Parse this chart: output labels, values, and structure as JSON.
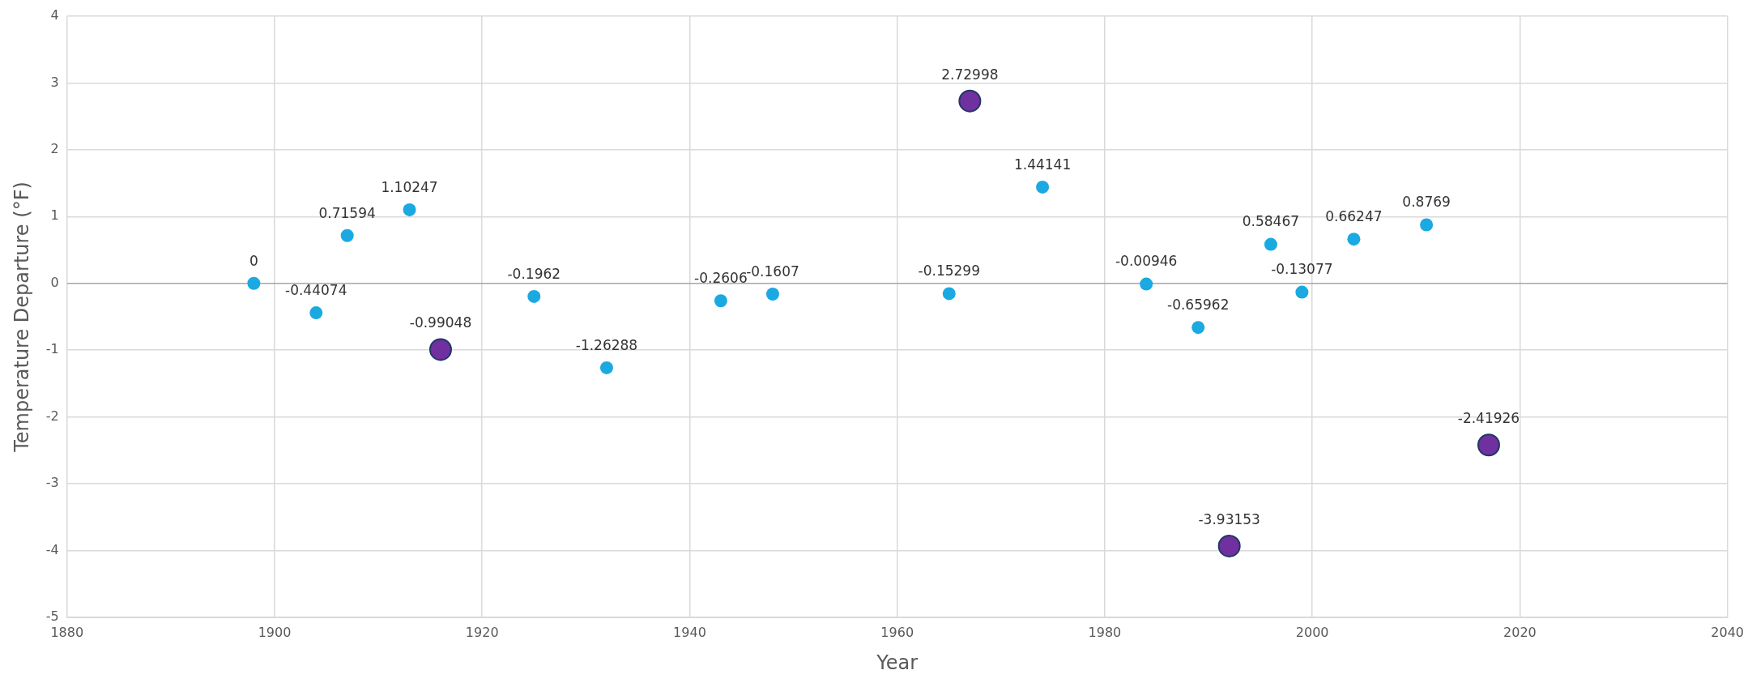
{
  "chart_data": {
    "type": "scatter",
    "xlabel": "Year",
    "ylabel": "Temperature Departure (°F)",
    "series": [
      {
        "color": "#1ba9e1",
        "x": [
          1898,
          1904,
          1907,
          1913,
          1925,
          1932,
          1943,
          1948,
          1965,
          1974,
          1984,
          1989,
          1996,
          1999,
          2004,
          2011
        ],
        "values": [
          0,
          -0.44074,
          0.71594,
          1.10247,
          -0.1962,
          -1.26288,
          -0.2606,
          -0.1607,
          -0.15299,
          1.44141,
          -0.00946,
          -0.65962,
          0.58467,
          -0.13077,
          0.66247,
          0.8769
        ]
      },
      {
        "color": "#7030a0",
        "x": [
          1916,
          1967,
          1992,
          2017
        ],
        "values": [
          -0.99048,
          2.72998,
          -3.93153,
          -2.41926
        ]
      }
    ],
    "xlim": [
      1880,
      2040
    ],
    "xticks": [
      1880,
      1900,
      1920,
      1940,
      1960,
      1980,
      2000,
      2020,
      2040
    ],
    "ylim": [
      -5,
      4
    ],
    "yticks": [
      -5,
      -4,
      -3,
      -2,
      -1,
      0,
      1,
      2,
      3,
      4
    ],
    "grid": true,
    "marker": "circle",
    "data_labels": true
  }
}
